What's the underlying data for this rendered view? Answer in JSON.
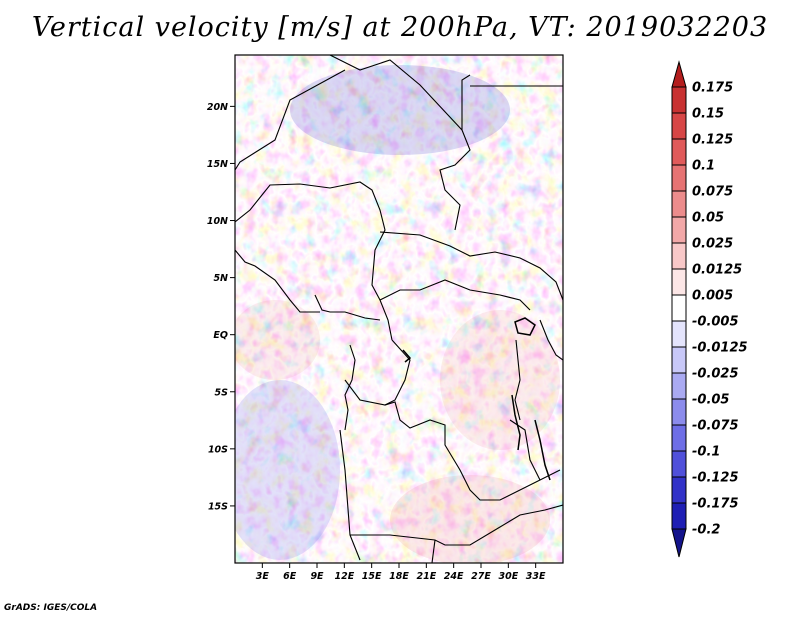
{
  "title": "Vertical velocity [m/s] at 200hPa, VT: 2019032203",
  "credit": "GrADS: IGES/COLA",
  "map": {
    "lon_range": [
      0,
      36
    ],
    "lat_range": [
      -20,
      24.5
    ],
    "lat_ticks": [
      {
        "lat": 20,
        "label": "20N"
      },
      {
        "lat": 15,
        "label": "15N"
      },
      {
        "lat": 10,
        "label": "10N"
      },
      {
        "lat": 5,
        "label": "5N"
      },
      {
        "lat": 0,
        "label": "EQ"
      },
      {
        "lat": -5,
        "label": "5S"
      },
      {
        "lat": -10,
        "label": "10S"
      },
      {
        "lat": -15,
        "label": "15S"
      }
    ],
    "lon_ticks": [
      {
        "lon": 3,
        "label": "3E"
      },
      {
        "lon": 6,
        "label": "6E"
      },
      {
        "lon": 9,
        "label": "9E"
      },
      {
        "lon": 12,
        "label": "12E"
      },
      {
        "lon": 15,
        "label": "15E"
      },
      {
        "lon": 18,
        "label": "18E"
      },
      {
        "lon": 21,
        "label": "21E"
      },
      {
        "lon": 24,
        "label": "24E"
      },
      {
        "lon": 27,
        "label": "27E"
      },
      {
        "lon": 30,
        "label": "30E"
      },
      {
        "lon": 33,
        "label": "33E"
      }
    ]
  },
  "colorbar": {
    "labels": [
      "0.175",
      "0.15",
      "0.125",
      "0.1",
      "0.075",
      "0.05",
      "0.025",
      "0.0125",
      "0.005",
      "-0.005",
      "-0.0125",
      "-0.025",
      "-0.05",
      "-0.075",
      "-0.1",
      "-0.125",
      "-0.175",
      "-0.2"
    ],
    "colors": [
      "#b41e1e",
      "#c83232",
      "#d74646",
      "#e05a5a",
      "#e67373",
      "#ec8c8c",
      "#f2a8a8",
      "#f8c8c8",
      "#fce6e6",
      "#ffffff",
      "#e4e4fc",
      "#c8c8f8",
      "#aaaaf2",
      "#8c8cec",
      "#6e6ee6",
      "#5050da",
      "#3232c8",
      "#1e1eb4",
      "#14148c"
    ]
  }
}
